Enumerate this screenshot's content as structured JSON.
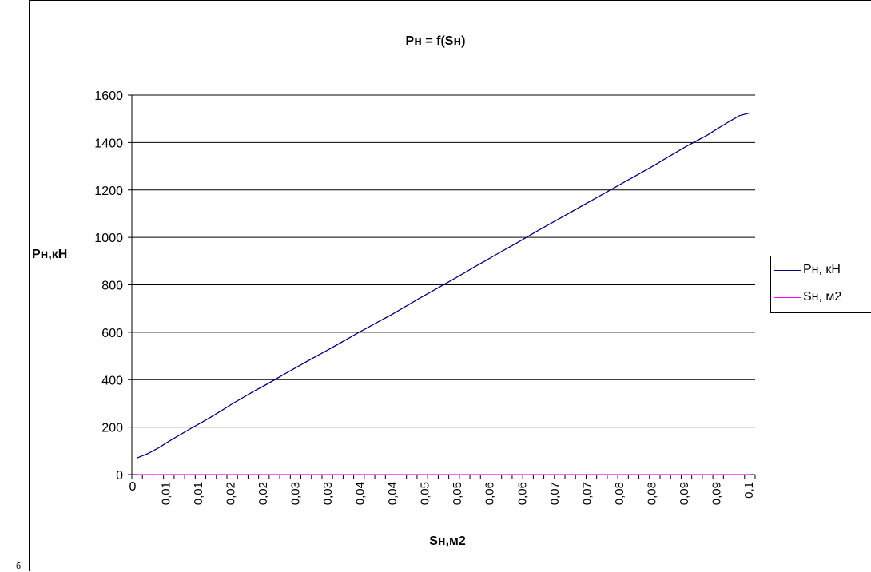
{
  "corner_mark": "б",
  "chart_data": {
    "type": "line",
    "title": "Pн = f(Sн)",
    "xlabel": "Sн,м2",
    "ylabel": "Pн,кН",
    "ylim": [
      0,
      1600
    ],
    "yticks": [
      0,
      200,
      400,
      600,
      800,
      1000,
      1200,
      1400,
      1600
    ],
    "x_tick_labels": [
      "0",
      "0,01",
      "0,01",
      "0,02",
      "0,02",
      "0,03",
      "0,03",
      "0,04",
      "0,04",
      "0,05",
      "0,05",
      "0,06",
      "0,06",
      "0,07",
      "0,07",
      "0,08",
      "0,08",
      "0,09",
      "0,09",
      "0,1"
    ],
    "grid": "horizontal",
    "legend_position": "right",
    "series": [
      {
        "name": "Pн, кН",
        "color": "#000080",
        "values": [
          70,
          88,
          112,
          140,
          166,
          192,
          217,
          243,
          270,
          298,
          324,
          350,
          374,
          399,
          425,
          450,
          475,
          500,
          524,
          549,
          574,
          600,
          624,
          648,
          672,
          698,
          724,
          750,
          775,
          800,
          825,
          851,
          877,
          902,
          928,
          953,
          978,
          1004,
          1030,
          1055,
          1080,
          1105,
          1130,
          1155,
          1180,
          1205,
          1230,
          1255,
          1280,
          1305,
          1332,
          1358,
          1384,
          1408,
          1432,
          1460,
          1487,
          1513,
          1525
        ]
      },
      {
        "name": "Sн, м2",
        "color": "#ff00ff",
        "values": [
          0.002,
          0.004,
          0.006,
          0.008,
          0.01,
          0.012,
          0.014,
          0.016,
          0.018,
          0.02,
          0.022,
          0.024,
          0.026,
          0.028,
          0.03,
          0.032,
          0.034,
          0.036,
          0.038,
          0.04,
          0.042,
          0.044,
          0.046,
          0.048,
          0.05,
          0.052,
          0.054,
          0.056,
          0.058,
          0.06,
          0.062,
          0.064,
          0.066,
          0.068,
          0.07,
          0.072,
          0.074,
          0.076,
          0.078,
          0.08,
          0.082,
          0.084,
          0.086,
          0.088,
          0.09,
          0.092,
          0.094,
          0.096,
          0.098,
          0.1,
          0.102,
          0.104,
          0.106,
          0.108,
          0.11,
          0.112,
          0.114,
          0.116,
          0.118
        ]
      }
    ]
  }
}
